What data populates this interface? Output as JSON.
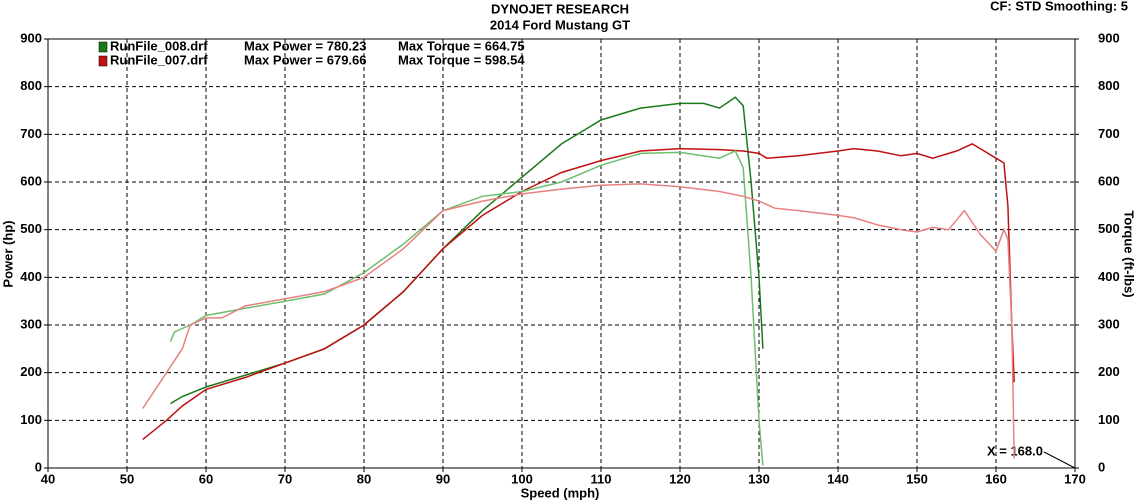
{
  "chart_data": {
    "type": "line",
    "title": "DYNOJET RESEARCH",
    "subtitle": "2014 Ford Mustang GT",
    "settings_text": "CF: STD  Smoothing: 5",
    "xlabel": "Speed (mph)",
    "ylabel": "Power (hp)",
    "y2label": "Torque (ft-lbs)",
    "annotation": "X = 168.0",
    "xlim": [
      40,
      170
    ],
    "xticks": [
      40,
      50,
      60,
      70,
      80,
      90,
      100,
      110,
      120,
      130,
      140,
      150,
      160,
      170
    ],
    "ylim": [
      0,
      900
    ],
    "yticks": [
      0,
      100,
      200,
      300,
      400,
      500,
      600,
      700,
      800,
      900
    ],
    "y2lim": [
      0,
      900
    ],
    "y2ticks": [
      0,
      100,
      200,
      300,
      400,
      500,
      600,
      700,
      800,
      900
    ],
    "grid": true,
    "legend_notes": [
      [
        "Max Power = 780.23",
        "Max Torque = 664.75"
      ],
      [
        "Max Power = 679.66",
        "Max Torque = 598.54"
      ]
    ],
    "series": [
      {
        "name": "RunFile_008.drf",
        "color": "#1a7a1a",
        "x": [
          55.5,
          57,
          60,
          65,
          70,
          75,
          80,
          85,
          90,
          95,
          100,
          105,
          110,
          115,
          120,
          123,
          125,
          127,
          128,
          129,
          130,
          130.5
        ],
        "values": [
          135,
          150,
          170,
          195,
          220,
          250,
          300,
          370,
          460,
          540,
          610,
          680,
          730,
          755,
          765,
          765,
          755,
          778,
          760,
          600,
          400,
          250
        ]
      },
      {
        "name": "RunFile_007.drf",
        "color": "#c01010",
        "x": [
          52,
          55,
          57,
          60,
          65,
          70,
          75,
          80,
          85,
          90,
          95,
          100,
          105,
          110,
          115,
          120,
          125,
          128,
          130,
          131,
          135,
          140,
          142,
          145,
          148,
          150,
          152,
          155,
          157,
          158,
          160,
          161,
          161.5,
          162,
          162.3
        ],
        "values": [
          60,
          100,
          130,
          165,
          190,
          220,
          250,
          300,
          370,
          460,
          530,
          580,
          620,
          645,
          665,
          670,
          668,
          665,
          660,
          650,
          655,
          665,
          670,
          665,
          655,
          660,
          650,
          665,
          680,
          670,
          650,
          640,
          550,
          300,
          180
        ]
      },
      {
        "color": "#6dbf6d",
        "axis": "y2",
        "x": [
          55.5,
          56,
          58,
          60,
          65,
          70,
          75,
          80,
          85,
          90,
          95,
          100,
          105,
          110,
          115,
          120,
          125,
          127,
          128,
          129,
          130,
          130.5
        ],
        "values": [
          265,
          285,
          300,
          320,
          335,
          350,
          365,
          410,
          470,
          540,
          570,
          580,
          600,
          635,
          660,
          662,
          650,
          665,
          630,
          400,
          100,
          5
        ]
      },
      {
        "color": "#e88080",
        "axis": "y2",
        "x": [
          52,
          53,
          55,
          57,
          58,
          60,
          62,
          65,
          70,
          75,
          80,
          85,
          90,
          95,
          100,
          105,
          110,
          115,
          120,
          125,
          128,
          130,
          132,
          135,
          140,
          142,
          145,
          148,
          150,
          152,
          154,
          156,
          158,
          160,
          161,
          161.5,
          162,
          162.3
        ],
        "values": [
          125,
          150,
          200,
          250,
          300,
          315,
          315,
          340,
          355,
          370,
          400,
          460,
          540,
          560,
          575,
          585,
          593,
          596,
          590,
          580,
          570,
          560,
          545,
          540,
          530,
          525,
          510,
          500,
          495,
          505,
          500,
          540,
          490,
          455,
          500,
          480,
          300,
          20
        ]
      }
    ]
  }
}
